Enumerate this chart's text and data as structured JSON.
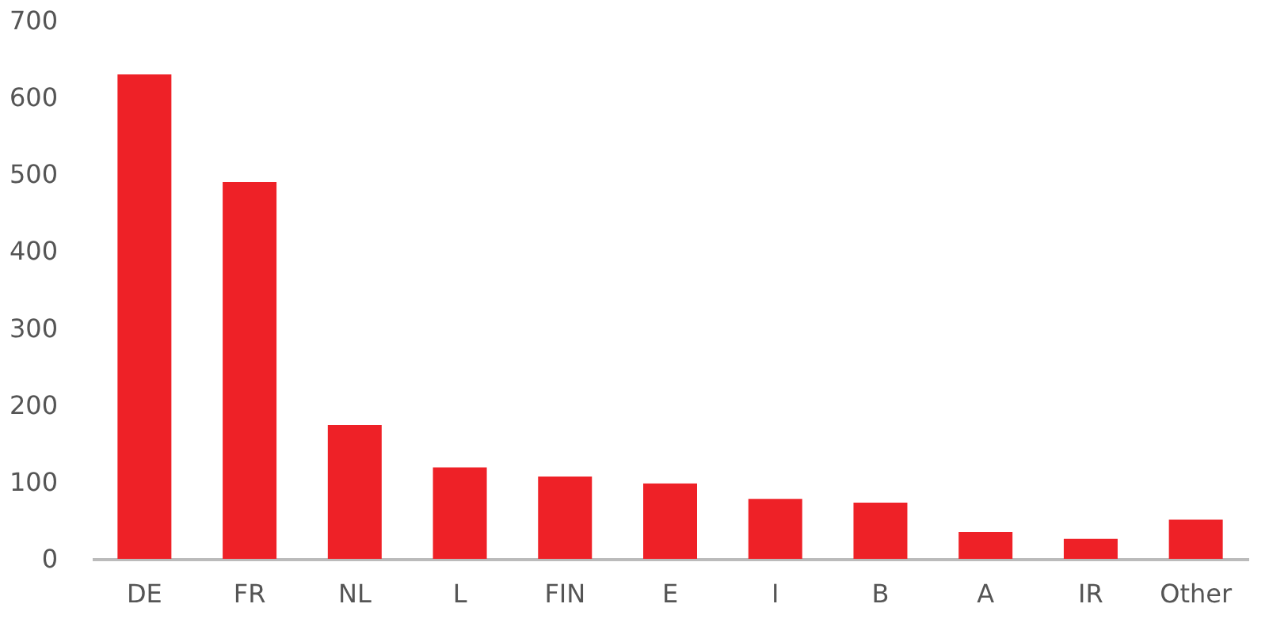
{
  "chart_data": {
    "type": "bar",
    "categories": [
      "DE",
      "FR",
      "NL",
      "L",
      "FIN",
      "E",
      "I",
      "B",
      "A",
      "IR",
      "Other"
    ],
    "values": [
      630,
      490,
      174,
      119,
      107,
      98,
      78,
      73,
      35,
      26,
      51
    ],
    "color": "#ee2127",
    "ylim": [
      0,
      700
    ],
    "yticks": [
      0,
      100,
      200,
      300,
      400,
      500,
      600,
      700
    ],
    "grid": false
  }
}
